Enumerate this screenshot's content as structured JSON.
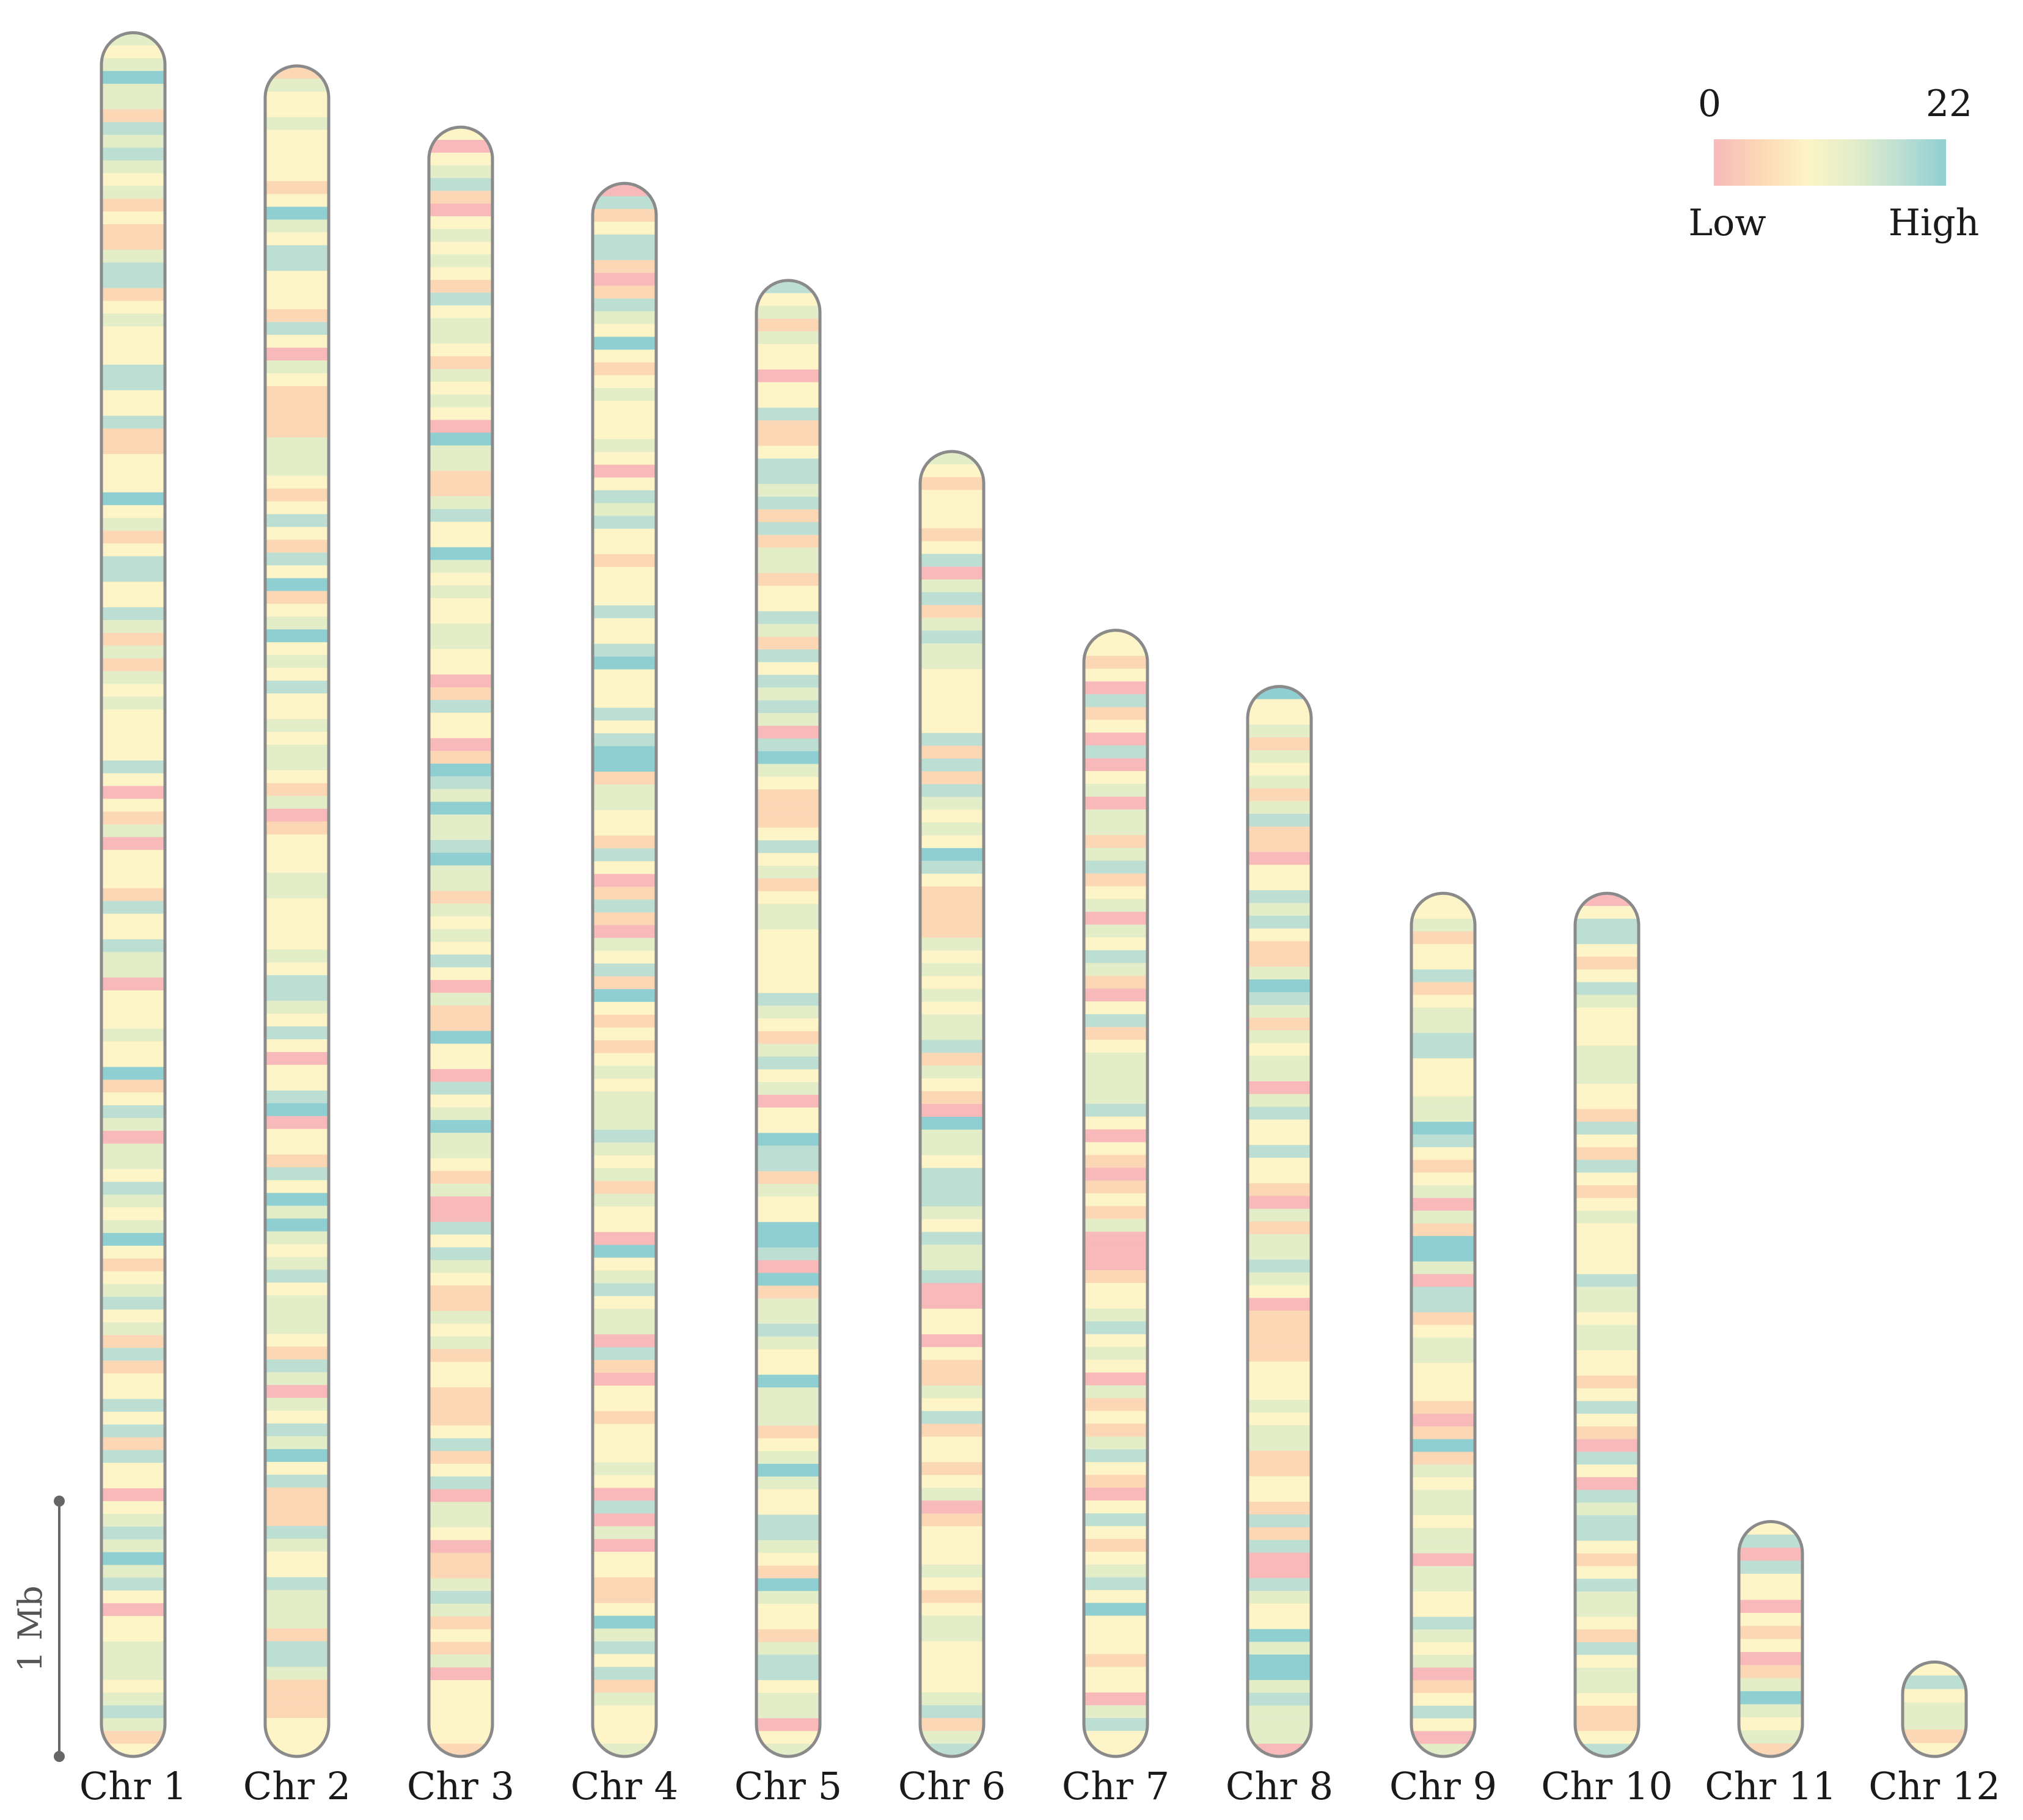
{
  "chart_data": {
    "type": "heatmap",
    "title": "",
    "description_unit": "gene density",
    "legend": {
      "min_label": "0",
      "max_label": "22",
      "low_label": "Low",
      "high_label": "High",
      "min": 0,
      "max": 22,
      "colors": [
        "#f8b9ba",
        "#fcd7b6",
        "#fdf4c7",
        "#e3edc8",
        "#bddfd3",
        "#8fcfd2"
      ]
    },
    "scale_bar": {
      "label": "1 Mb",
      "length_mb": 1
    },
    "chromosomes": [
      {
        "name": "Chr 1",
        "length_mb": 6.75
      },
      {
        "name": "Chr 2",
        "length_mb": 6.62
      },
      {
        "name": "Chr 3",
        "length_mb": 6.38
      },
      {
        "name": "Chr 4",
        "length_mb": 6.16
      },
      {
        "name": "Chr 5",
        "length_mb": 5.78
      },
      {
        "name": "Chr 6",
        "length_mb": 5.11
      },
      {
        "name": "Chr 7",
        "length_mb": 4.41
      },
      {
        "name": "Chr 8",
        "length_mb": 4.19
      },
      {
        "name": "Chr 9",
        "length_mb": 3.38
      },
      {
        "name": "Chr 10",
        "length_mb": 3.38
      },
      {
        "name": "Chr 11",
        "length_mb": 0.92
      },
      {
        "name": "Chr 12",
        "length_mb": 0.37
      }
    ],
    "density_bins_per_mb": 20
  }
}
